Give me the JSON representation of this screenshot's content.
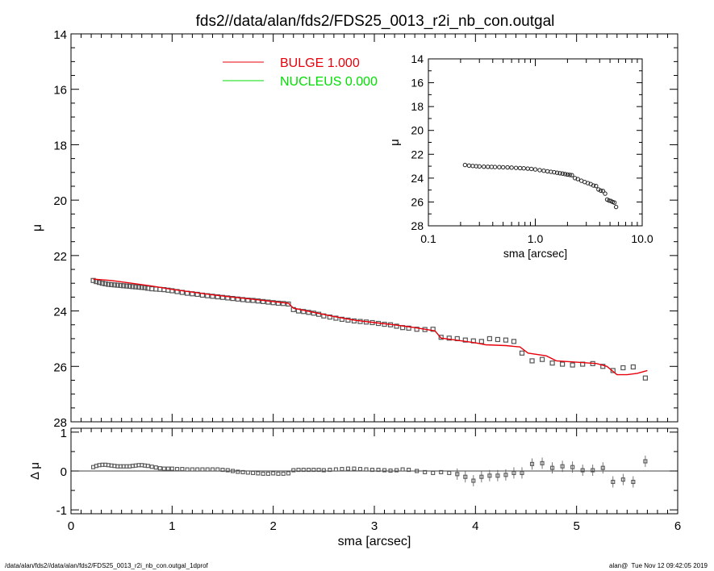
{
  "chart_data": [
    {
      "id": "main",
      "type": "scatter",
      "title": "fds2//data/alan/fds2/FDS25_0013_r2i_nb_con.outgal",
      "xlabel": "",
      "ylabel": "μ",
      "xlim": [
        0,
        6
      ],
      "ylim": [
        28,
        14
      ],
      "yticks": [
        14,
        16,
        18,
        20,
        22,
        24,
        26,
        28
      ],
      "legend": [
        {
          "label": "BULGE  1.000",
          "color": "#e8000b"
        },
        {
          "label": "NUCLEUS  0.000",
          "color": "#00dd00"
        }
      ],
      "series": [
        {
          "name": "data",
          "marker": "open-square",
          "x": [
            0.22,
            0.25,
            0.28,
            0.31,
            0.34,
            0.37,
            0.4,
            0.43,
            0.46,
            0.49,
            0.52,
            0.55,
            0.58,
            0.61,
            0.64,
            0.67,
            0.7,
            0.73,
            0.76,
            0.8,
            0.84,
            0.88,
            0.92,
            0.96,
            1.0,
            1.05,
            1.1,
            1.15,
            1.2,
            1.25,
            1.3,
            1.35,
            1.4,
            1.45,
            1.5,
            1.55,
            1.6,
            1.65,
            1.7,
            1.75,
            1.8,
            1.85,
            1.9,
            1.95,
            2.0,
            2.05,
            2.1,
            2.15,
            2.2,
            2.25,
            2.3,
            2.35,
            2.4,
            2.45,
            2.5,
            2.56,
            2.62,
            2.68,
            2.74,
            2.8,
            2.86,
            2.92,
            2.98,
            3.04,
            3.1,
            3.16,
            3.22,
            3.28,
            3.34,
            3.42,
            3.5,
            3.58,
            3.66,
            3.74,
            3.82,
            3.9,
            3.98,
            4.06,
            4.14,
            4.22,
            4.3,
            4.38,
            4.46,
            4.56,
            4.66,
            4.76,
            4.86,
            4.96,
            5.06,
            5.16,
            5.26,
            5.36,
            5.46,
            5.56,
            5.68
          ],
          "y": [
            22.9,
            22.94,
            22.97,
            23.0,
            23.02,
            23.04,
            23.05,
            23.06,
            23.07,
            23.08,
            23.09,
            23.1,
            23.11,
            23.12,
            23.13,
            23.14,
            23.15,
            23.16,
            23.18,
            23.2,
            23.21,
            23.22,
            23.23,
            23.25,
            23.27,
            23.3,
            23.33,
            23.36,
            23.38,
            23.4,
            23.43,
            23.45,
            23.47,
            23.49,
            23.51,
            23.53,
            23.55,
            23.57,
            23.59,
            23.61,
            23.62,
            23.64,
            23.66,
            23.68,
            23.7,
            23.72,
            23.73,
            23.75,
            23.95,
            24.0,
            24.02,
            24.05,
            24.08,
            24.12,
            24.18,
            24.22,
            24.26,
            24.3,
            24.33,
            24.36,
            24.38,
            24.4,
            24.42,
            24.45,
            24.48,
            24.5,
            24.55,
            24.6,
            24.62,
            24.66,
            24.67,
            24.66,
            24.95,
            24.98,
            25.0,
            25.05,
            25.08,
            25.1,
            25.0,
            25.03,
            25.05,
            25.1,
            25.52,
            25.8,
            25.75,
            25.88,
            25.92,
            25.95,
            25.92,
            25.9,
            26.0,
            26.15,
            26.05,
            26.02,
            26.42
          ]
        },
        {
          "name": "BULGE",
          "type": "line",
          "color": "#e8000b",
          "x": [
            0.22,
            0.4,
            0.6,
            0.8,
            1.0,
            1.2,
            1.4,
            1.6,
            1.8,
            2.0,
            2.15,
            2.2,
            2.4,
            2.6,
            2.8,
            3.0,
            3.2,
            3.4,
            3.6,
            3.66,
            3.8,
            4.0,
            4.1,
            4.3,
            4.44,
            4.52,
            4.7,
            4.8,
            5.0,
            5.2,
            5.3,
            5.4,
            5.5,
            5.6,
            5.7
          ],
          "y": [
            22.85,
            22.9,
            23.0,
            23.1,
            23.22,
            23.32,
            23.42,
            23.5,
            23.58,
            23.66,
            23.72,
            23.9,
            24.05,
            24.2,
            24.33,
            24.42,
            24.5,
            24.6,
            24.72,
            24.98,
            25.05,
            25.15,
            25.22,
            25.25,
            25.3,
            25.52,
            25.62,
            25.8,
            25.85,
            25.9,
            26.0,
            26.3,
            26.3,
            26.25,
            26.15
          ]
        }
      ]
    },
    {
      "id": "residual",
      "type": "scatter",
      "ylabel": "Δ μ",
      "xlabel": "sma [arcsec]",
      "xlim": [
        0,
        6
      ],
      "ylim": [
        -1.1,
        1.1
      ],
      "yticks": [
        -1,
        0,
        1
      ],
      "xticks": [
        0,
        1,
        2,
        3,
        4,
        5,
        6
      ],
      "series": [
        {
          "name": "residual",
          "marker": "open-square",
          "x": [
            0.22,
            0.25,
            0.28,
            0.31,
            0.34,
            0.37,
            0.4,
            0.43,
            0.46,
            0.49,
            0.52,
            0.55,
            0.58,
            0.61,
            0.64,
            0.67,
            0.7,
            0.73,
            0.76,
            0.8,
            0.84,
            0.88,
            0.92,
            0.96,
            1.0,
            1.05,
            1.1,
            1.15,
            1.2,
            1.25,
            1.3,
            1.35,
            1.4,
            1.45,
            1.5,
            1.55,
            1.6,
            1.65,
            1.7,
            1.75,
            1.8,
            1.85,
            1.9,
            1.95,
            2.0,
            2.05,
            2.1,
            2.15,
            2.2,
            2.25,
            2.3,
            2.35,
            2.4,
            2.45,
            2.5,
            2.56,
            2.62,
            2.68,
            2.74,
            2.8,
            2.86,
            2.92,
            2.98,
            3.04,
            3.1,
            3.16,
            3.22,
            3.28,
            3.34,
            3.42,
            3.5,
            3.58,
            3.66,
            3.74,
            3.82,
            3.9,
            3.98,
            4.06,
            4.14,
            4.22,
            4.3,
            4.38,
            4.46,
            4.56,
            4.66,
            4.76,
            4.86,
            4.96,
            5.06,
            5.16,
            5.26,
            5.36,
            5.46,
            5.56,
            5.68
          ],
          "y": [
            0.1,
            0.13,
            0.15,
            0.16,
            0.16,
            0.15,
            0.14,
            0.13,
            0.12,
            0.12,
            0.12,
            0.12,
            0.12,
            0.13,
            0.14,
            0.15,
            0.15,
            0.14,
            0.13,
            0.11,
            0.09,
            0.07,
            0.06,
            0.06,
            0.06,
            0.05,
            0.05,
            0.04,
            0.04,
            0.04,
            0.04,
            0.04,
            0.04,
            0.04,
            0.03,
            0.02,
            0.0,
            -0.02,
            -0.03,
            -0.04,
            -0.05,
            -0.06,
            -0.07,
            -0.07,
            -0.06,
            -0.07,
            -0.07,
            -0.06,
            0.02,
            0.03,
            0.03,
            0.03,
            0.03,
            0.03,
            0.02,
            0.03,
            0.04,
            0.05,
            0.06,
            0.06,
            0.05,
            0.04,
            0.03,
            0.03,
            0.02,
            0.01,
            0.02,
            0.04,
            0.03,
            0.0,
            -0.03,
            -0.05,
            -0.03,
            -0.05,
            -0.08,
            -0.15,
            -0.25,
            -0.15,
            -0.12,
            -0.12,
            -0.1,
            -0.05,
            -0.05,
            0.18,
            0.2,
            0.08,
            0.12,
            0.1,
            0.02,
            0.02,
            0.08,
            -0.28,
            -0.22,
            -0.28,
            0.25
          ]
        }
      ]
    },
    {
      "id": "inset",
      "type": "scatter",
      "xlabel": "sma [arcsec]",
      "ylabel": "μ",
      "xscale": "log",
      "xlim": [
        0.1,
        10
      ],
      "ylim": [
        28,
        14
      ],
      "xticks": [
        0.1,
        1,
        10
      ],
      "xticklabels": [
        "0.1",
        "1.0",
        "10.0"
      ],
      "yticks": [
        14,
        16,
        18,
        20,
        22,
        24,
        26,
        28
      ],
      "series": [
        {
          "name": "data",
          "marker": "open-circle",
          "x": [
            0.22,
            0.24,
            0.26,
            0.28,
            0.3,
            0.33,
            0.36,
            0.39,
            0.42,
            0.46,
            0.5,
            0.55,
            0.6,
            0.66,
            0.72,
            0.78,
            0.85,
            0.92,
            1.0,
            1.1,
            1.2,
            1.3,
            1.4,
            1.5,
            1.6,
            1.7,
            1.8,
            1.9,
            2.0,
            2.1,
            2.2,
            2.35,
            2.5,
            2.7,
            2.9,
            3.1,
            3.3,
            3.5,
            3.7,
            3.9,
            4.1,
            4.3,
            4.5,
            4.7,
            4.9,
            5.1,
            5.3,
            5.5,
            5.7
          ],
          "y": [
            22.9,
            22.95,
            22.98,
            23.0,
            23.02,
            23.04,
            23.05,
            23.06,
            23.07,
            23.08,
            23.09,
            23.1,
            23.12,
            23.14,
            23.16,
            23.18,
            23.2,
            23.23,
            23.27,
            23.33,
            23.38,
            23.43,
            23.47,
            23.51,
            23.55,
            23.59,
            23.62,
            23.66,
            23.7,
            23.73,
            23.75,
            24.0,
            24.08,
            24.22,
            24.33,
            24.42,
            24.5,
            24.62,
            24.66,
            24.95,
            25.05,
            25.08,
            25.3,
            25.8,
            25.88,
            25.92,
            26.0,
            26.05,
            26.42
          ]
        }
      ]
    }
  ],
  "footer": {
    "left": "/data/alan/fds2//data/alan/fds2/FDS25_0013_r2i_nb_con.outgal_1dprof",
    "right": "alan@  Tue Nov 12 09:42:05 2019"
  }
}
